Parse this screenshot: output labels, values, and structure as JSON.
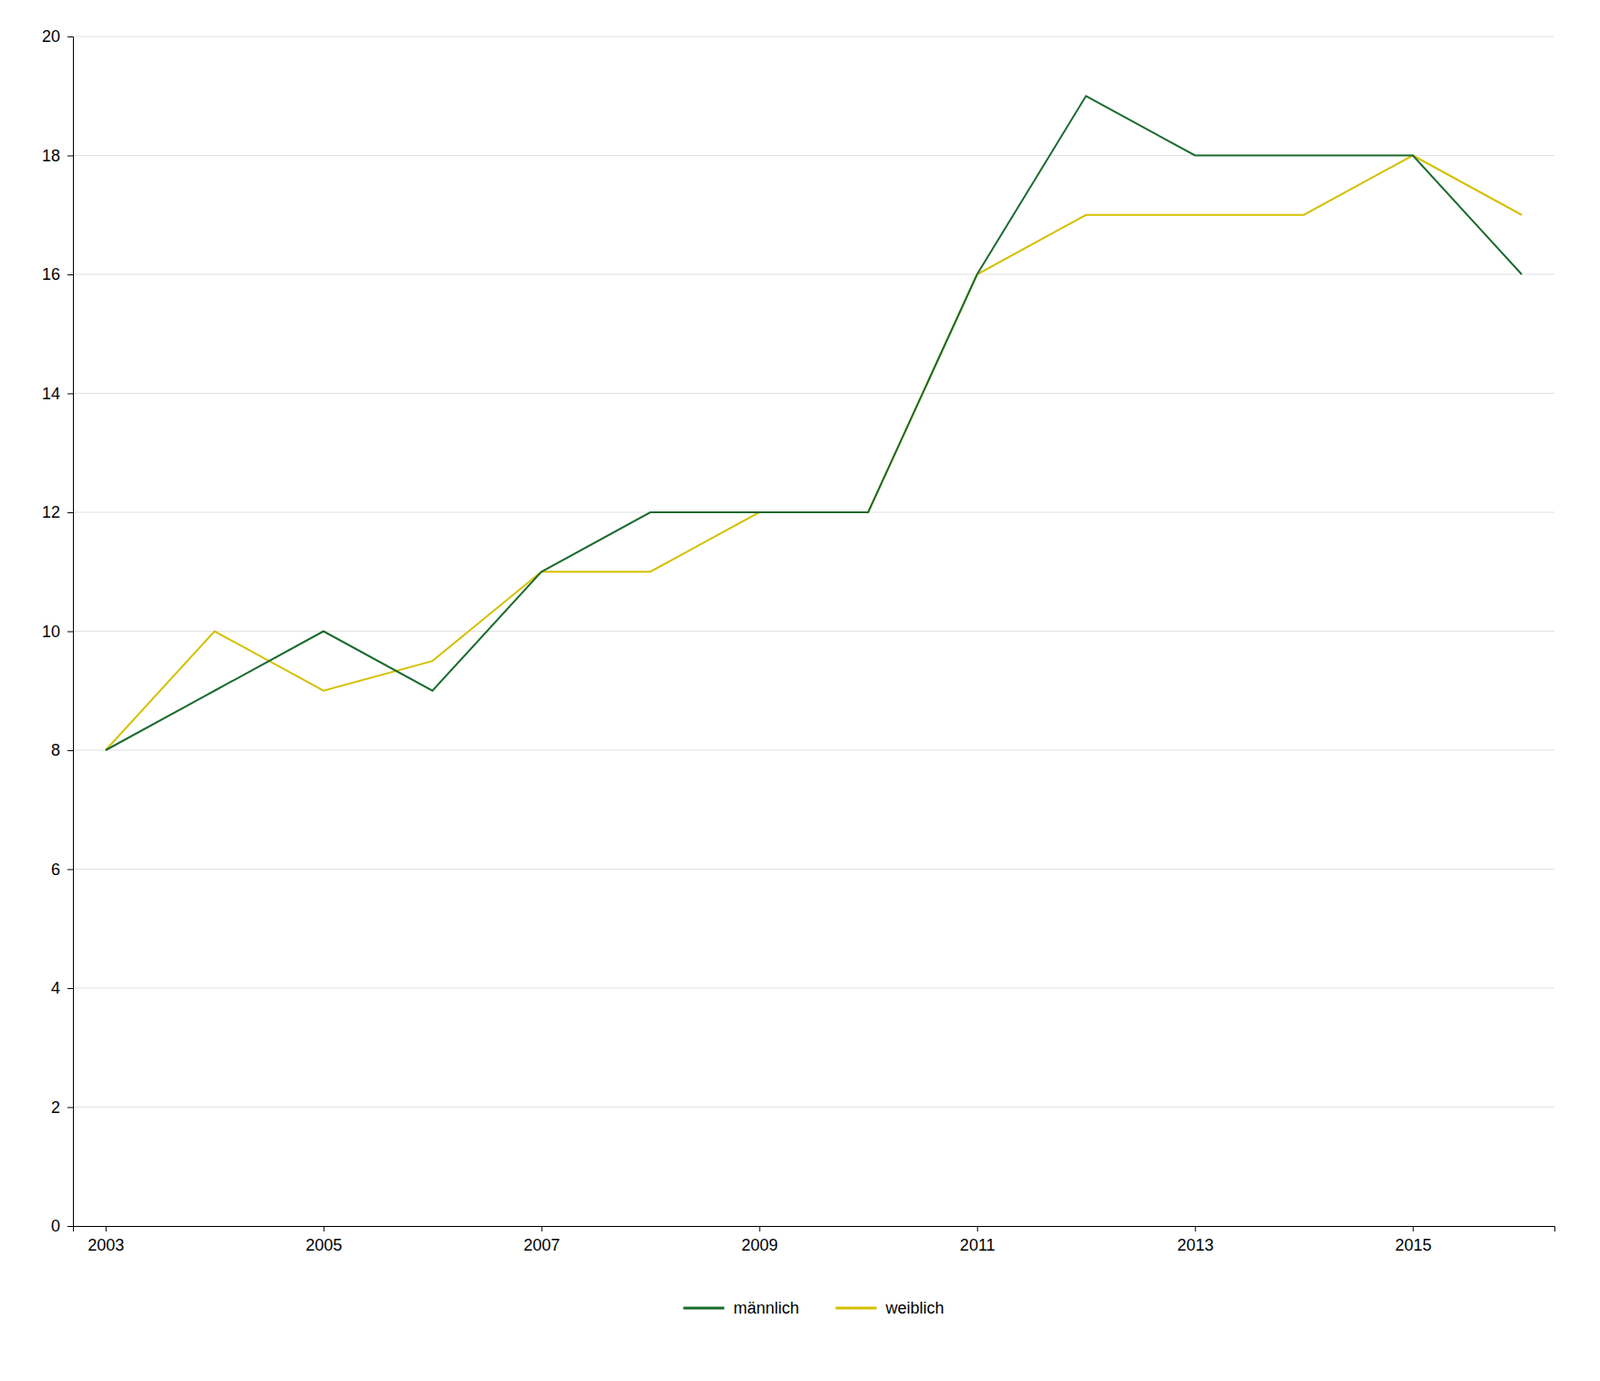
{
  "chart_data": {
    "type": "line",
    "x": [
      2003,
      2004,
      2005,
      2006,
      2007,
      2008,
      2009,
      2010,
      2011,
      2012,
      2013,
      2014,
      2015,
      2016
    ],
    "series": [
      {
        "name": "männlich",
        "color": "#1a6b2e",
        "values": [
          8,
          9,
          10,
          9,
          11,
          12,
          12,
          12,
          16,
          19,
          18,
          18,
          18,
          16
        ]
      },
      {
        "name": "weiblich",
        "color": "#d4c000",
        "values": [
          8,
          10,
          9,
          9.5,
          11,
          11,
          12,
          12,
          16,
          17,
          17,
          17,
          18,
          17
        ]
      }
    ],
    "xlim": [
      2002.7,
      2016.3
    ],
    "xticks": [
      2003,
      2005,
      2007,
      2009,
      2011,
      2013,
      2015
    ],
    "ylim": [
      0,
      20
    ],
    "yticks": [
      0,
      2,
      4,
      6,
      8,
      10,
      12,
      14,
      16,
      18,
      20
    ],
    "grid": "y",
    "legend": "bottom"
  }
}
